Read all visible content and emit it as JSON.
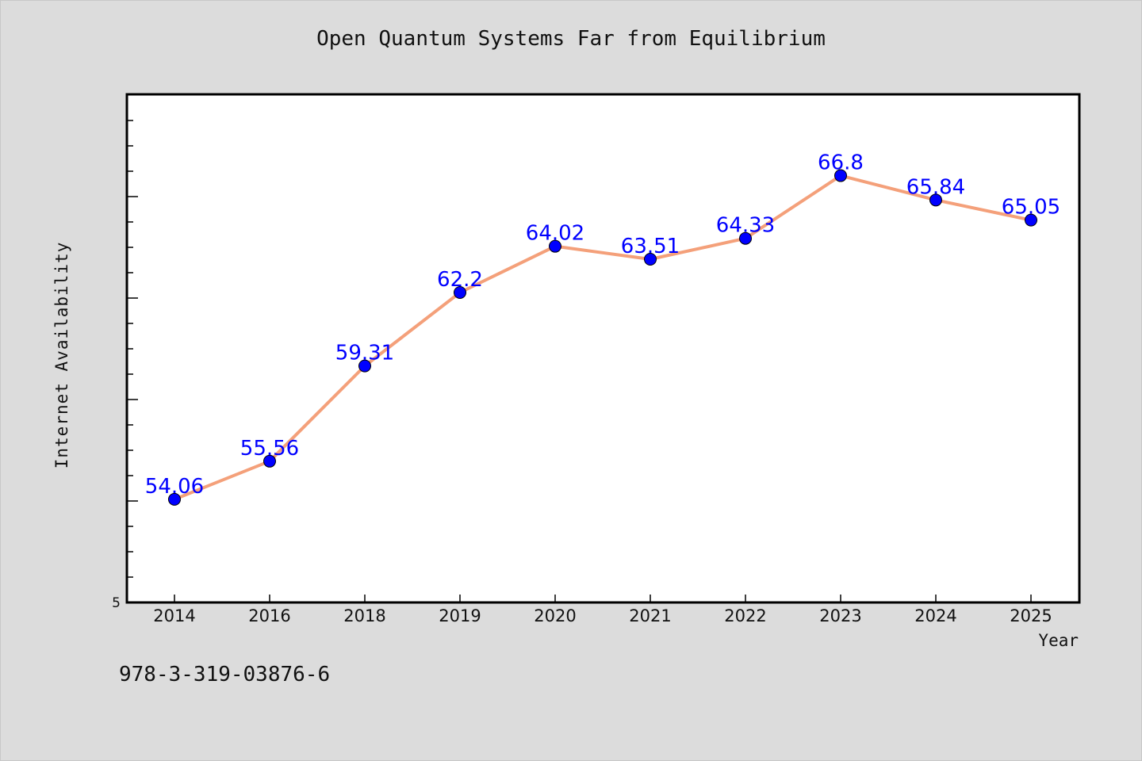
{
  "chart_data": {
    "type": "line",
    "title": "Open Quantum Systems Far from Equilibrium",
    "xlabel": "Year",
    "ylabel": "Internet Availability",
    "categories": [
      "2014",
      "2016",
      "2018",
      "2019",
      "2020",
      "2021",
      "2022",
      "2023",
      "2024",
      "2025"
    ],
    "series": [
      {
        "values": [
          54.06,
          55.56,
          59.31,
          62.2,
          64.02,
          63.51,
          64.33,
          66.8,
          65.84,
          65.05
        ]
      }
    ],
    "ylim": [
      50,
      70
    ],
    "y_tick_labels": [
      "5"
    ],
    "grid": false,
    "line_color": "#f4a07a",
    "marker_color": "#0000ff",
    "label_color": "#0000ff"
  },
  "footer": {
    "text": "978-3-319-03876-6"
  }
}
